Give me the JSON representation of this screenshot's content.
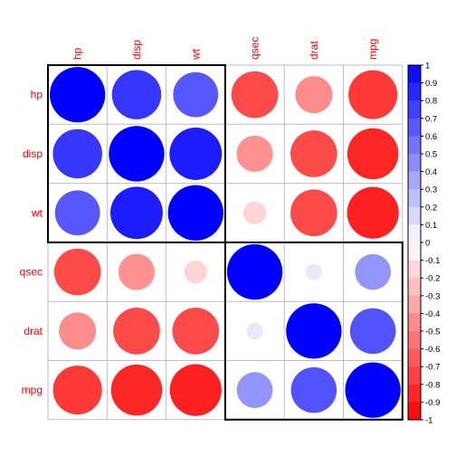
{
  "chart_data": {
    "type": "heatmap",
    "subtype": "correlation-circles",
    "variables": [
      "hp",
      "disp",
      "wt",
      "qsec",
      "drat",
      "mpg"
    ],
    "matrix": [
      [
        1.0,
        0.79,
        0.66,
        -0.71,
        -0.45,
        -0.78
      ],
      [
        0.79,
        1.0,
        0.89,
        -0.43,
        -0.71,
        -0.85
      ],
      [
        0.66,
        0.89,
        1.0,
        -0.17,
        -0.71,
        -0.87
      ],
      [
        -0.71,
        -0.43,
        -0.17,
        1.0,
        0.09,
        0.42
      ],
      [
        -0.45,
        -0.71,
        -0.71,
        0.09,
        1.0,
        0.68
      ],
      [
        -0.78,
        -0.85,
        -0.87,
        0.42,
        0.68,
        1.0
      ]
    ],
    "clusters": [
      [
        "hp",
        "disp",
        "wt"
      ],
      [
        "qsec",
        "drat",
        "mpg"
      ]
    ],
    "colorbar": {
      "range": [
        -1,
        1
      ],
      "ticks": [
        "1",
        "0.9",
        "0.8",
        "0.7",
        "0.6",
        "0.5",
        "0.4",
        "0.3",
        "0.2",
        "0.1",
        "0",
        "-0.1",
        "-0.2",
        "-0.3",
        "-0.4",
        "-0.5",
        "-0.6",
        "-0.7",
        "-0.8",
        "-0.9",
        "-1"
      ],
      "positive_color": "#0000ff",
      "negative_color": "#ff0000",
      "neutral_color": "#ffffff"
    },
    "label_color": "#ff0000",
    "grid_color": "#bebebe",
    "cluster_border_color": "#000000"
  }
}
